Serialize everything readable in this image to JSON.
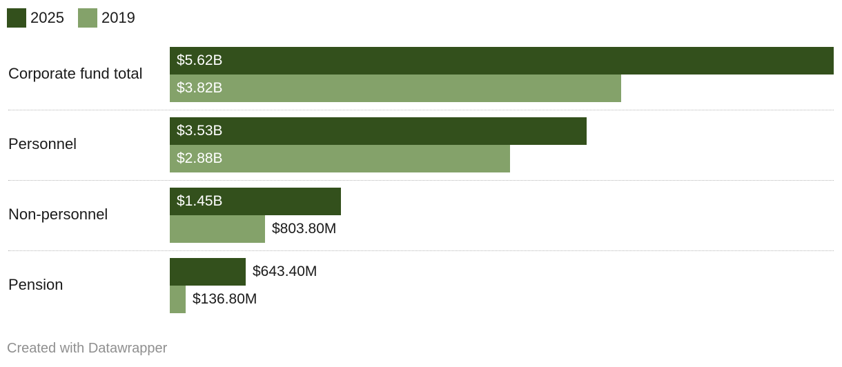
{
  "chart_data": {
    "type": "bar",
    "orientation": "horizontal",
    "categories": [
      "Corporate fund total",
      "Personnel",
      "Non-personnel",
      "Pension"
    ],
    "series": [
      {
        "name": "2025",
        "color": "#33501c",
        "values": [
          5.62,
          3.53,
          1.45,
          0.6434
        ],
        "labels": [
          "$5.62B",
          "$3.53B",
          "$1.45B",
          "$643.40M"
        ]
      },
      {
        "name": "2019",
        "color": "#84a26a",
        "values": [
          3.82,
          2.88,
          0.8038,
          0.1368
        ],
        "labels": [
          "$3.82B",
          "$2.88B",
          "$803.80M",
          "$136.80M"
        ]
      }
    ],
    "unit": "billions of dollars",
    "xlim": [
      0,
      5.62
    ],
    "legend": "top-left",
    "grid": false
  },
  "footer": "Created with Datawrapper"
}
